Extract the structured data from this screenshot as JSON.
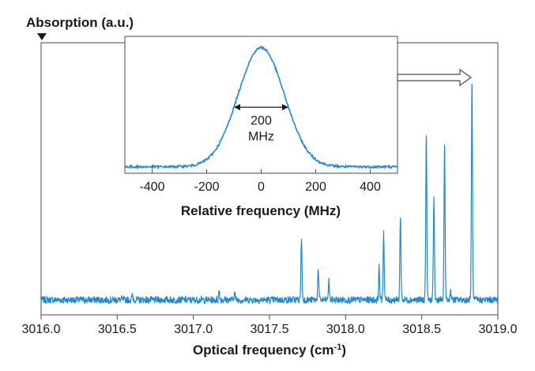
{
  "chart_data": [
    {
      "type": "line",
      "role": "main",
      "ylabel": "Absorption (a.u.)",
      "xlabel": "Optical frequency (cm",
      "xlabel_sup": "-1",
      "xlabel_close": ")",
      "xlim": [
        3016.0,
        3019.0
      ],
      "ylim": [
        0,
        1.0
      ],
      "xticks": [
        3016.0,
        3016.5,
        3017.0,
        3017.5,
        3018.0,
        3018.5,
        3019.0
      ],
      "xtick_labels": [
        "3016.0",
        "3016.5",
        "3017.0",
        "3017.5",
        "3018.0",
        "3018.5",
        "3019.0"
      ],
      "grid": false,
      "series": [
        {
          "color": "#1e88d6",
          "baseline": 0.03,
          "peaks": [
            {
              "x": 3016.53,
              "y": 0.035
            },
            {
              "x": 3016.6,
              "y": 0.05
            },
            {
              "x": 3017.17,
              "y": 0.07
            },
            {
              "x": 3017.27,
              "y": 0.065
            },
            {
              "x": 3017.48,
              "y": 0.03
            },
            {
              "x": 3017.71,
              "y": 0.29
            },
            {
              "x": 3017.82,
              "y": 0.16
            },
            {
              "x": 3017.89,
              "y": 0.11
            },
            {
              "x": 3018.22,
              "y": 0.17
            },
            {
              "x": 3018.25,
              "y": 0.32
            },
            {
              "x": 3018.36,
              "y": 0.38
            },
            {
              "x": 3018.53,
              "y": 0.73
            },
            {
              "x": 3018.58,
              "y": 0.47
            },
            {
              "x": 3018.65,
              "y": 0.69
            },
            {
              "x": 3018.69,
              "y": 0.07
            },
            {
              "x": 3018.83,
              "y": 0.95
            }
          ]
        }
      ]
    },
    {
      "type": "line",
      "role": "inset",
      "xlabel": "Relative frequency (MHz)",
      "xlim": [
        -500,
        500
      ],
      "ylim": [
        0,
        1.0
      ],
      "xticks": [
        -400,
        -200,
        0,
        200,
        400
      ],
      "xtick_labels": [
        "-400",
        "-200",
        "0",
        "200",
        "400"
      ],
      "grid": false,
      "series": [
        {
          "color": "#1e88d6",
          "shape": "gaussian",
          "center": 0,
          "fwhm": 200,
          "peak": 0.98,
          "baseline": 0.02
        }
      ],
      "annotation": {
        "line1": "200",
        "line2": "MHz",
        "fwhm_from": -100,
        "fwhm_to": 100
      }
    }
  ]
}
